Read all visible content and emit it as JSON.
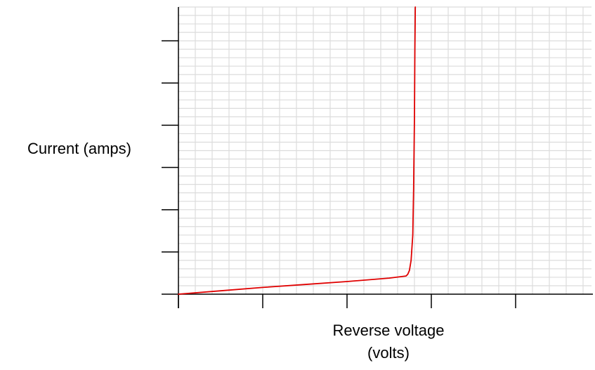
{
  "chart_data": {
    "type": "line",
    "title": "",
    "xlabel_line1": "Reverse voltage",
    "xlabel_line2": "(volts)",
    "ylabel": "Current (amps)",
    "xlim": [
      0,
      4.9
    ],
    "ylim": [
      0,
      6.8
    ],
    "x_major_ticks": [
      0,
      1,
      2,
      3,
      4
    ],
    "y_major_ticks": [
      1,
      2,
      3,
      4,
      5,
      6
    ],
    "grid": true,
    "grid_minor_per_major": 5,
    "legend": "none",
    "tick_labels_shown": false,
    "series": [
      {
        "color": "#e00000",
        "x": [
          0,
          0.5,
          1.0,
          1.5,
          2.0,
          2.5,
          2.7,
          2.72,
          2.74,
          2.76,
          2.78,
          2.79,
          2.8,
          2.805,
          2.81
        ],
        "y": [
          0,
          0.08,
          0.16,
          0.23,
          0.3,
          0.38,
          0.43,
          0.47,
          0.56,
          0.8,
          1.4,
          2.5,
          4.2,
          5.8,
          6.8
        ]
      }
    ]
  }
}
